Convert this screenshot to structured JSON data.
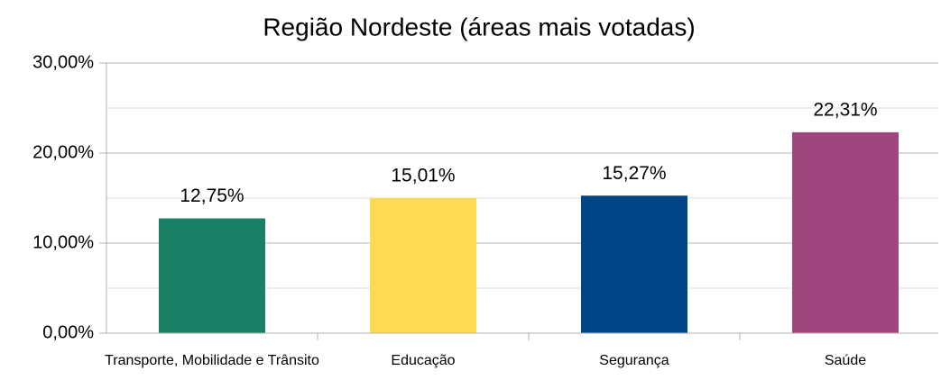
{
  "chart_data": {
    "type": "bar",
    "title": "Região Nordeste (áreas mais votadas)",
    "categories": [
      "Transporte, Mobilidade e Trânsito",
      "Educação",
      "Segurança",
      "Saúde"
    ],
    "values": [
      12.75,
      15.01,
      15.27,
      22.31
    ],
    "value_labels": [
      "12,75%",
      "15,01%",
      "15,27%",
      "22,31%"
    ],
    "colors": [
      "#1a7f64",
      "#ffd952",
      "#004586",
      "#a0457e"
    ],
    "ylim": [
      0,
      30
    ],
    "yticks": [
      {
        "value": 0,
        "label": "0,00%"
      },
      {
        "value": 10,
        "label": "10,00%"
      },
      {
        "value": 20,
        "label": "20,00%"
      },
      {
        "value": 30,
        "label": "30,00%"
      }
    ],
    "yticks_minor": [
      5,
      15,
      25
    ],
    "grid": true
  }
}
